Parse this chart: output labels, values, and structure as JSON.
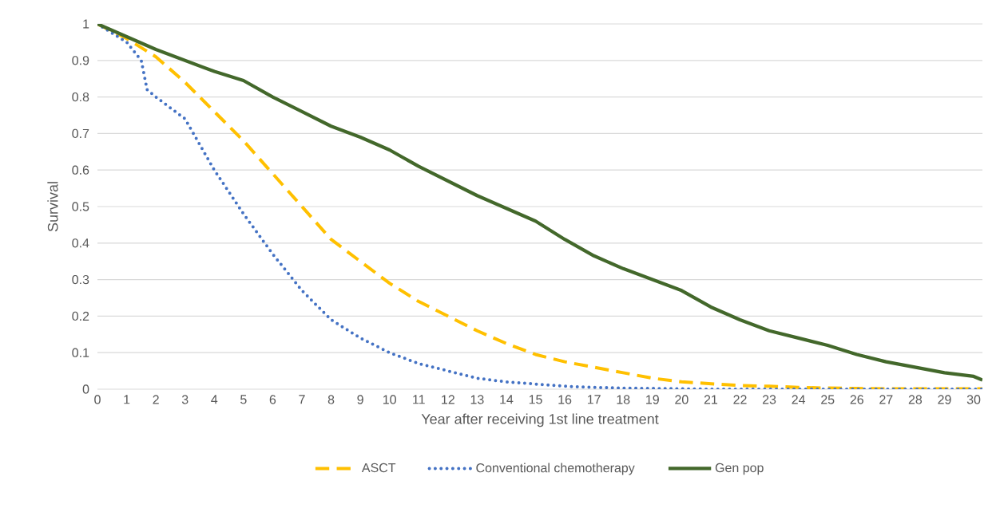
{
  "chart_data": {
    "type": "line",
    "xlabel": "Year after receiving 1st line treatment",
    "ylabel": "Survival",
    "xlim": [
      0,
      30.3
    ],
    "xticks": [
      0,
      1,
      2,
      3,
      4,
      5,
      6,
      7,
      8,
      9,
      10,
      11,
      12,
      13,
      14,
      15,
      16,
      17,
      18,
      19,
      20,
      21,
      22,
      23,
      24,
      25,
      26,
      27,
      28,
      29,
      30
    ],
    "ylim": [
      0,
      1
    ],
    "yticks": [
      0,
      0.1,
      0.2,
      0.3,
      0.4,
      0.5,
      0.6,
      0.7,
      0.8,
      0.9,
      1
    ],
    "grid": "y",
    "legend": "bottom",
    "series": [
      {
        "name": "ASCT",
        "color": "#ffc000",
        "line_style": "dashed",
        "x": [
          0,
          1,
          1.5,
          2,
          3,
          4,
          5,
          6,
          7,
          8,
          9,
          10,
          11,
          12,
          13,
          14,
          15,
          16,
          17,
          18,
          19,
          20,
          21,
          22,
          23,
          24,
          25,
          26,
          27,
          28,
          29,
          30,
          30.3
        ],
        "values": [
          1.0,
          0.96,
          0.935,
          0.91,
          0.84,
          0.76,
          0.68,
          0.59,
          0.5,
          0.41,
          0.35,
          0.29,
          0.24,
          0.2,
          0.16,
          0.125,
          0.095,
          0.075,
          0.06,
          0.045,
          0.03,
          0.02,
          0.015,
          0.01,
          0.008,
          0.005,
          0.003,
          0.002,
          0.001,
          0.001,
          0.001,
          0.001,
          0.001
        ]
      },
      {
        "name": "Conventional chemotherapy",
        "color": "#4472c4",
        "line_style": "dotted",
        "x": [
          0,
          1,
          1.5,
          1.7,
          2,
          3,
          4,
          5,
          6,
          7,
          8,
          9,
          10,
          11,
          12,
          13,
          14,
          15,
          16,
          17,
          18,
          19,
          20,
          21,
          22,
          23,
          24,
          25,
          26,
          27,
          28,
          29,
          30,
          30.3
        ],
        "values": [
          1.0,
          0.95,
          0.9,
          0.82,
          0.8,
          0.74,
          0.6,
          0.48,
          0.37,
          0.27,
          0.19,
          0.14,
          0.1,
          0.07,
          0.05,
          0.03,
          0.02,
          0.014,
          0.008,
          0.005,
          0.003,
          0.002,
          0.001,
          0,
          0,
          0,
          0,
          0,
          0,
          0,
          0,
          0,
          0,
          0
        ]
      },
      {
        "name": "Gen pop",
        "color": "#43682b",
        "line_style": "solid",
        "x": [
          0,
          1,
          2,
          3,
          4,
          5,
          6,
          7,
          8,
          9,
          10,
          11,
          12,
          13,
          14,
          15,
          16,
          17,
          18,
          19,
          20,
          21,
          22,
          23,
          24,
          25,
          26,
          27,
          28,
          29,
          30,
          30.3
        ],
        "values": [
          1.0,
          0.965,
          0.93,
          0.9,
          0.87,
          0.845,
          0.8,
          0.76,
          0.72,
          0.69,
          0.655,
          0.61,
          0.57,
          0.53,
          0.495,
          0.46,
          0.41,
          0.365,
          0.33,
          0.3,
          0.27,
          0.225,
          0.19,
          0.16,
          0.14,
          0.12,
          0.095,
          0.075,
          0.06,
          0.045,
          0.035,
          0.025
        ]
      }
    ]
  }
}
